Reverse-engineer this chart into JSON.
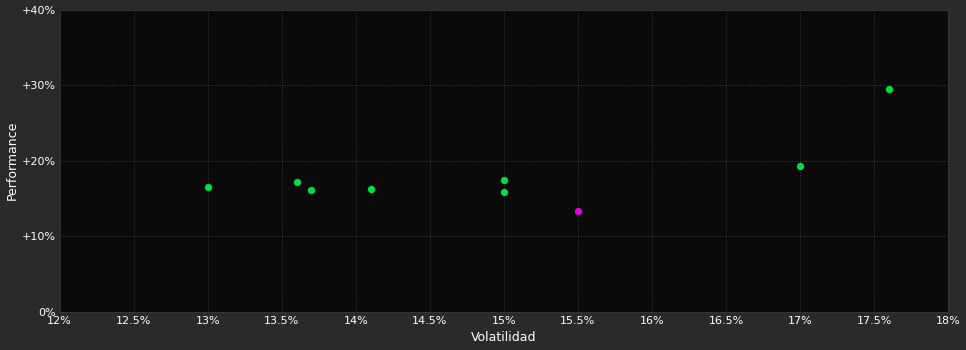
{
  "background_color": "#2a2a2a",
  "plot_bg_color": "#0a0a0a",
  "grid_color": "#3a3a3a",
  "text_color": "#ffffff",
  "xlabel": "Volatilidad",
  "ylabel": "Performance",
  "x_min": 0.12,
  "x_max": 0.18,
  "y_min": 0.0,
  "y_max": 0.4,
  "x_ticks": [
    0.12,
    0.125,
    0.13,
    0.135,
    0.14,
    0.145,
    0.15,
    0.155,
    0.16,
    0.165,
    0.17,
    0.175,
    0.18
  ],
  "y_ticks": [
    0.0,
    0.1,
    0.2,
    0.3,
    0.4
  ],
  "green_points": [
    [
      0.13,
      0.165
    ],
    [
      0.136,
      0.172
    ],
    [
      0.137,
      0.161
    ],
    [
      0.141,
      0.162
    ],
    [
      0.15,
      0.175
    ],
    [
      0.15,
      0.158
    ],
    [
      0.17,
      0.193
    ],
    [
      0.176,
      0.295
    ]
  ],
  "magenta_points": [
    [
      0.155,
      0.133
    ]
  ],
  "green_color": "#00dd44",
  "magenta_color": "#dd00dd",
  "marker_size": 28
}
